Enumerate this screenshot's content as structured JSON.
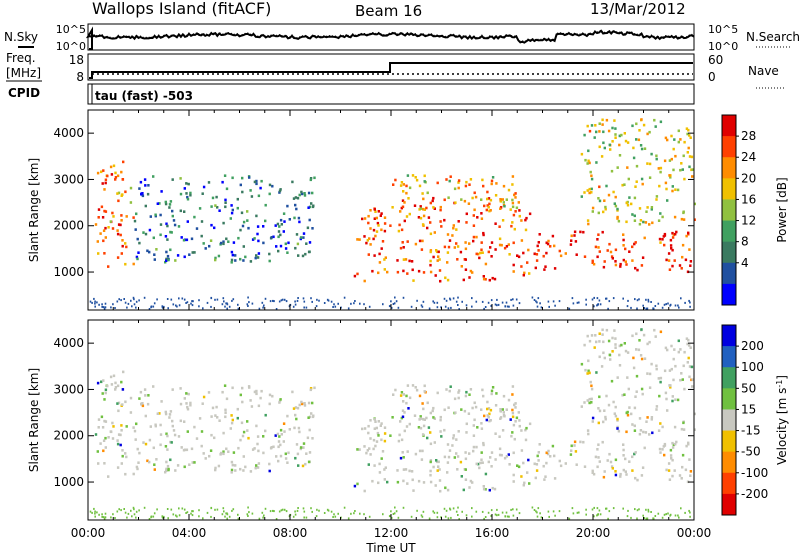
{
  "header": {
    "station": "Wallops Island (fitACF)",
    "beam": "Beam 16",
    "date": "13/Mar/2012"
  },
  "noise_panel": {
    "left_label": "N.Sky",
    "right_label": "N.Search",
    "left_ticks": [
      "10^5",
      "10^0"
    ],
    "right_ticks": [
      "10^5",
      "10^0"
    ]
  },
  "freq_panel": {
    "left_label_1": "Freq.",
    "left_label_2": "[MHz]",
    "cpid_label": "CPID",
    "right_label": "Nave",
    "left_ticks": [
      "18",
      "8"
    ],
    "right_ticks": [
      "60",
      "0"
    ],
    "cpid_text": "tau (fast) -503"
  },
  "chart_data": [
    {
      "type": "heatmap",
      "panel": "power",
      "ylabel": "Slant Range [km]",
      "xlabel": "",
      "ylim": [
        180,
        4500
      ],
      "xlim": [
        "00:00",
        "24:00"
      ],
      "yticks": [
        "4000",
        "3000",
        "2000",
        "1000"
      ],
      "colorbar": {
        "label": "Power [dB]",
        "ticks": [
          "28",
          "24",
          "20",
          "16",
          "12",
          "8",
          "4"
        ],
        "colors": [
          "#e00000",
          "#ff4000",
          "#ff8c00",
          "#f0c000",
          "#90c040",
          "#40a060",
          "#3a7a60",
          "#2050a0",
          "#0000ff"
        ]
      },
      "echo_regions": [
        {
          "t_start": 0.2,
          "t_end": 1.8,
          "r_low": 1100,
          "r_high": 3400,
          "dominant_db": 24
        },
        {
          "t_start": 1.8,
          "t_end": 9.0,
          "r_low": 1200,
          "r_high": 3100,
          "dominant_db": 8
        },
        {
          "t_start": 10.5,
          "t_end": 17.5,
          "r_low": 800,
          "r_high": 2600,
          "dominant_db": 26
        },
        {
          "t_start": 12.0,
          "t_end": 17.0,
          "r_low": 2300,
          "r_high": 3100,
          "dominant_db": 20
        },
        {
          "t_start": 17.6,
          "t_end": 24.0,
          "r_low": 1000,
          "r_high": 1900,
          "dominant_db": 28
        },
        {
          "t_start": 19.5,
          "t_end": 24.0,
          "r_low": 2000,
          "r_high": 4300,
          "dominant_db": 18
        }
      ]
    },
    {
      "type": "heatmap",
      "panel": "velocity",
      "ylabel": "Slant Range [km]",
      "xlabel": "Time UT",
      "ylim": [
        180,
        4500
      ],
      "xlim": [
        "00:00",
        "24:00"
      ],
      "yticks": [
        "4000",
        "3000",
        "2000",
        "1000"
      ],
      "xticks": [
        "00:00",
        "04:00",
        "08:00",
        "12:00",
        "16:00",
        "20:00",
        "00:00"
      ],
      "colorbar": {
        "label": "Velocity [m s",
        "label_sup": "-1",
        "label_end": "]",
        "ticks": [
          "200",
          "100",
          "50",
          "15",
          "-15",
          "-50",
          "-100",
          "-200"
        ],
        "colors": [
          "#0000e0",
          "#2060c0",
          "#40a060",
          "#70c040",
          "#c8c8c0",
          "#f0c000",
          "#ff8c00",
          "#ff4000",
          "#e00000"
        ]
      },
      "dominant_value_ms": 0
    }
  ]
}
